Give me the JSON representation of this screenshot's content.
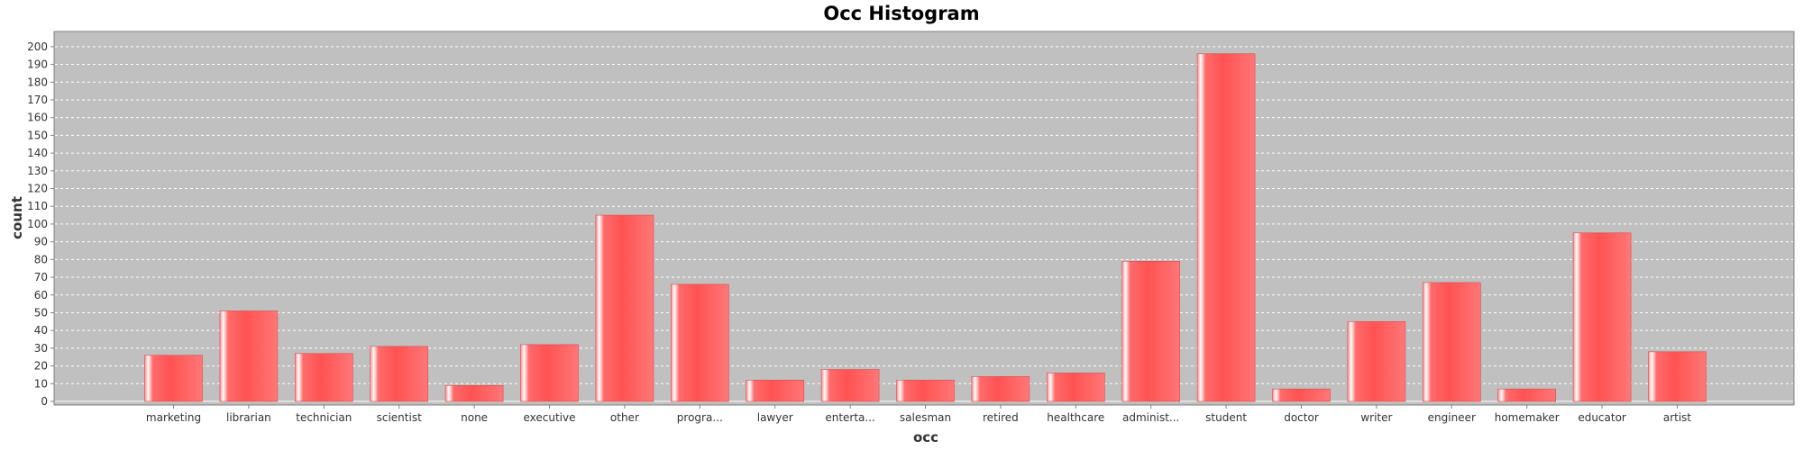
{
  "chart_data": {
    "type": "bar",
    "title": "Occ Histogram",
    "xlabel": "occ",
    "ylabel": "count",
    "ylim": [
      0,
      205
    ],
    "ytick_step": 10,
    "grid": true,
    "legend": "none",
    "bar_color": "#ff5555",
    "plot_background": "#c0c0c0",
    "categories": [
      "marketing",
      "librarian",
      "technician",
      "scientist",
      "none",
      "executive",
      "other",
      "progra...",
      "lawyer",
      "enterta...",
      "salesman",
      "retired",
      "healthcare",
      "administ...",
      "student",
      "doctor",
      "writer",
      "engineer",
      "homemaker",
      "educator",
      "artist"
    ],
    "values": [
      26,
      51,
      27,
      31,
      9,
      32,
      105,
      66,
      12,
      18,
      12,
      14,
      16,
      79,
      196,
      7,
      45,
      67,
      7,
      95,
      28
    ]
  }
}
